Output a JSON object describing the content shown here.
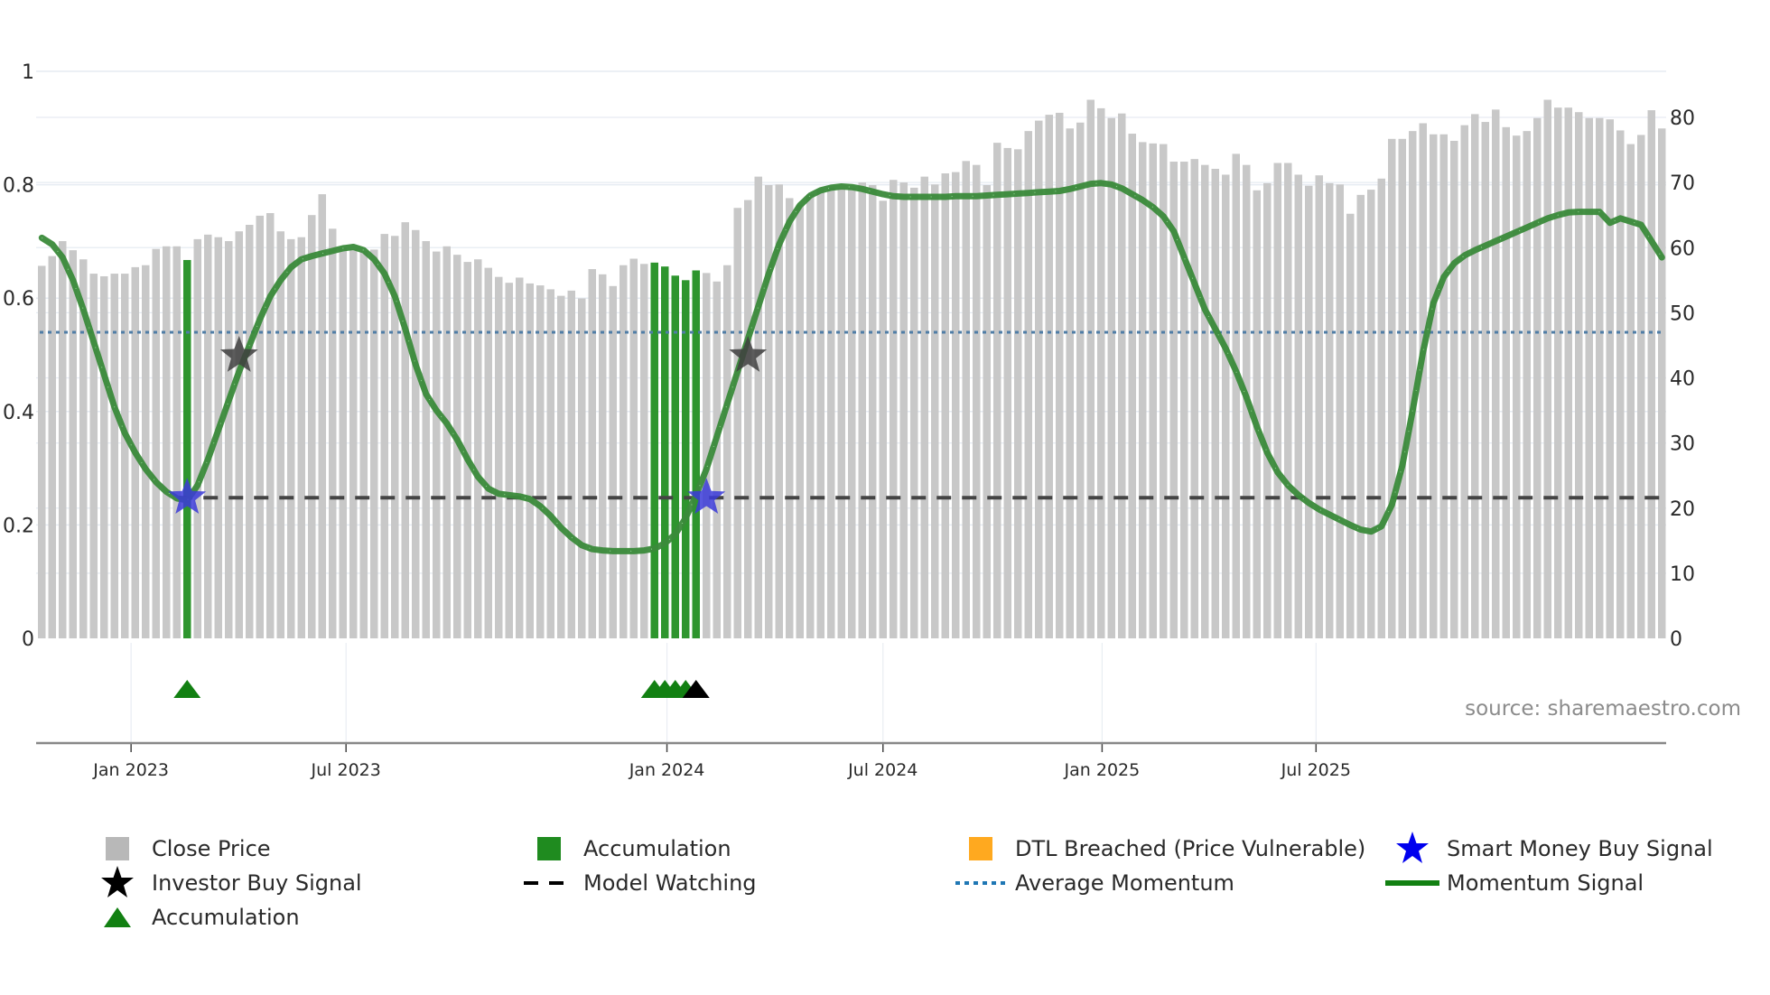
{
  "chart_data": {
    "type": "bar",
    "title": "",
    "xlabel": "",
    "ylabel_left": "",
    "ylabel_right": "",
    "left_axis": {
      "ticks": [
        "0",
        "0.2",
        "0.4",
        "0.6",
        "0.8",
        "1"
      ],
      "range": [
        0,
        1
      ]
    },
    "right_axis": {
      "ticks": [
        "0",
        "10",
        "20",
        "30",
        "40",
        "50",
        "60",
        "70",
        "80"
      ],
      "range": [
        0,
        80
      ]
    },
    "x_ticks": [
      {
        "label": "Jan 2023",
        "bar_index": 8.6
      },
      {
        "label": "Jul 2023",
        "bar_index": 29.3
      },
      {
        "label": "Jan 2024",
        "bar_index": 60.2
      },
      {
        "label": "Jul 2024",
        "bar_index": 81.0
      },
      {
        "label": "Jan 2025",
        "bar_index": 102.1
      },
      {
        "label": "Jul 2025",
        "bar_index": 122.7
      }
    ],
    "grid": true,
    "legend_position": "bottom",
    "series": [
      {
        "name": "Close Price",
        "type": "bar",
        "axis": "right",
        "color": "#c8c8c8",
        "values": [
          57.2,
          58.7,
          61.0,
          59.6,
          58.2,
          56.0,
          55.6,
          56.0,
          56.0,
          57.0,
          57.3,
          59.8,
          60.2,
          60.2,
          58.1,
          61.3,
          62.0,
          61.6,
          61.0,
          62.5,
          63.5,
          64.9,
          65.3,
          62.5,
          61.3,
          61.6,
          65.0,
          68.2,
          62.9,
          60.0,
          59.7,
          59.5,
          59.7,
          62.1,
          61.8,
          63.9,
          62.7,
          61.0,
          59.4,
          60.2,
          58.9,
          57.8,
          58.2,
          56.9,
          55.5,
          54.6,
          55.4,
          54.5,
          54.2,
          53.6,
          52.6,
          53.4,
          52.2,
          56.7,
          55.9,
          54.1,
          57.3,
          58.3,
          57.5,
          57.7,
          57.1,
          55.7,
          55.0,
          56.5,
          56.1,
          54.8,
          57.3,
          66.1,
          67.3,
          70.9,
          69.6,
          69.7,
          67.6,
          66.6,
          68.2,
          69.0,
          69.2,
          69.0,
          69.2,
          70.0,
          69.6,
          67.2,
          70.4,
          70.0,
          69.2,
          70.9,
          69.7,
          71.4,
          71.6,
          73.3,
          72.7,
          69.6,
          76.1,
          75.3,
          75.1,
          77.9,
          79.5,
          80.4,
          80.7,
          78.3,
          79.2,
          82.7,
          81.4,
          79.9,
          80.6,
          77.5,
          76.2,
          76.0,
          75.9,
          73.2,
          73.2,
          73.6,
          72.7,
          72.1,
          71.2,
          74.4,
          72.7,
          68.8,
          69.9,
          73.0,
          73.0,
          71.2,
          69.5,
          71.1,
          69.9,
          69.7,
          65.2,
          68.1,
          68.9,
          70.6,
          76.7,
          76.7,
          77.9,
          79.1,
          77.4,
          77.4,
          76.4,
          78.8,
          80.5,
          79.3,
          81.2,
          78.5,
          77.2,
          77.9,
          79.9,
          82.7,
          81.5,
          81.5,
          80.8,
          79.9,
          79.9,
          79.7,
          78.0,
          75.9,
          77.3,
          81.1,
          78.3
        ]
      },
      {
        "name": "Accumulation",
        "type": "bar",
        "axis": "right",
        "color": "#2e952e",
        "bar_indices": [
          14,
          59,
          60,
          61,
          62,
          63
        ]
      },
      {
        "name": "DTL Breached (Price Vulnerable)",
        "type": "bar",
        "axis": "right",
        "color": "#ffa91f",
        "bar_indices": []
      },
      {
        "name": "Momentum Signal",
        "type": "line",
        "axis": "right",
        "color": "#3a8a3a",
        "values": [
          61.5,
          60.5,
          58.5,
          55,
          50.5,
          45.5,
          40.5,
          35.5,
          31.5,
          28.5,
          26,
          24,
          22.5,
          21.5,
          21.2,
          23.5,
          27.5,
          32,
          36.5,
          41,
          45,
          49,
          52.5,
          55,
          57,
          58.2,
          58.7,
          59.1,
          59.5,
          59.9,
          60.1,
          59.6,
          58.2,
          56,
          52.5,
          47.5,
          42,
          37.5,
          35,
          33,
          30.5,
          27.5,
          24.8,
          23,
          22.2,
          22,
          21.8,
          21.4,
          20.3,
          18.8,
          17,
          15.5,
          14.3,
          13.7,
          13.5,
          13.4,
          13.4,
          13.4,
          13.5,
          13.8,
          14.6,
          16,
          18.5,
          22,
          26,
          31,
          36,
          41,
          46,
          51,
          56,
          60.5,
          64,
          66.5,
          68,
          68.8,
          69.2,
          69.4,
          69.3,
          69,
          68.6,
          68.2,
          67.9,
          67.8,
          67.8,
          67.8,
          67.8,
          67.8,
          67.9,
          67.9,
          67.9,
          68,
          68.1,
          68.2,
          68.3,
          68.4,
          68.5,
          68.6,
          68.7,
          69,
          69.4,
          69.8,
          69.9,
          69.7,
          69.1,
          68.2,
          67.3,
          66.2,
          64.8,
          62.5,
          58.5,
          54.5,
          50.5,
          47.5,
          44.5,
          41,
          37,
          32.5,
          28.5,
          25.5,
          23.5,
          22,
          20.8,
          19.8,
          19,
          18.2,
          17.4,
          16.7,
          16.4,
          17.2,
          20.5,
          26.5,
          35,
          44,
          51.5,
          55.5,
          57.6,
          58.8,
          59.6,
          60.3,
          61,
          61.7,
          62.4,
          63.1,
          63.8,
          64.5,
          65,
          65.4,
          65.5,
          65.5,
          65.5,
          63.8,
          64.5,
          64,
          63.5,
          61,
          58.5
        ]
      },
      {
        "name": "Average Momentum",
        "type": "hline",
        "axis": "right",
        "color": "#4f7da6",
        "value": 47
      },
      {
        "name": "Model Watching",
        "type": "hline",
        "axis": "right",
        "color": "#444444",
        "value": 21.6,
        "start_index": 14
      },
      {
        "name": "Smart Money Buy Signal",
        "type": "scatter",
        "marker": "star",
        "color": "#3b3bd8",
        "points": [
          {
            "bar_index": 14,
            "value": 21.6
          },
          {
            "bar_index": 64,
            "value": 21.6
          }
        ]
      },
      {
        "name": "Investor Buy Signal",
        "type": "scatter",
        "marker": "star",
        "color": "#404040",
        "points": [
          {
            "bar_index": 19,
            "value": 43.4
          },
          {
            "bar_index": 68,
            "value": 43.4
          }
        ]
      },
      {
        "name": "Accumulation",
        "type": "scatter",
        "marker": "triangle",
        "color": "#128012",
        "points": [
          {
            "bar_index": 14
          },
          {
            "bar_index": 59
          },
          {
            "bar_index": 60
          },
          {
            "bar_index": 61
          },
          {
            "bar_index": 62
          }
        ]
      },
      {
        "name": "Accumulation (latest)",
        "type": "scatter",
        "marker": "triangle",
        "color": "#000000",
        "points": [
          {
            "bar_index": 63
          }
        ]
      }
    ],
    "annotations": [
      "source: sharemaestro.com"
    ]
  },
  "source_label": "source: sharemaestro.com",
  "legend": {
    "items": [
      {
        "label": "Close Price",
        "symbol": "square",
        "color": "#b8b8b8"
      },
      {
        "label": "Accumulation",
        "symbol": "square",
        "color": "#1f8b1f"
      },
      {
        "label": "DTL Breached (Price Vulnerable)",
        "symbol": "square",
        "color": "#ffa91f"
      },
      {
        "label": "Smart Money Buy Signal",
        "symbol": "star",
        "color": "#0000ee"
      },
      {
        "label": "Investor Buy Signal",
        "symbol": "star",
        "color": "#000000"
      },
      {
        "label": "Model Watching",
        "symbol": "dash",
        "color": "#000000"
      },
      {
        "label": "Average Momentum",
        "symbol": "dot",
        "color": "#1f77b4"
      },
      {
        "label": "Momentum Signal",
        "symbol": "line",
        "color": "#128012"
      },
      {
        "label": "Accumulation",
        "symbol": "triangle",
        "color": "#128012"
      }
    ]
  }
}
